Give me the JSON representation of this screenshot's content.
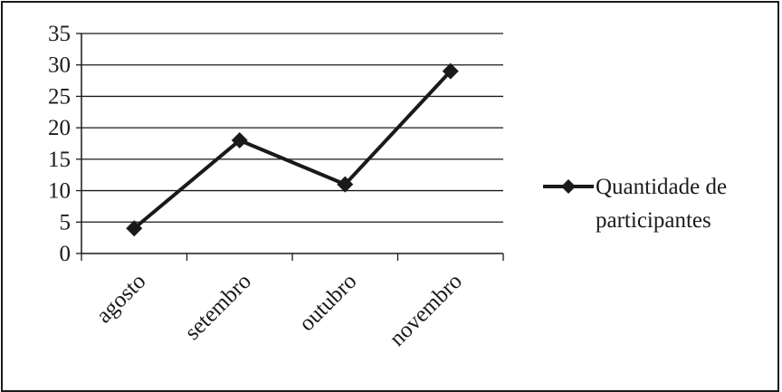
{
  "chart_data": {
    "type": "line",
    "categories": [
      "agosto",
      "setembro",
      "outubro",
      "novembro"
    ],
    "series": [
      {
        "name": "Quantidade de participantes",
        "values": [
          4,
          18,
          11,
          29
        ]
      }
    ],
    "legend": {
      "position": "right",
      "lines": [
        "Quantidade de",
        "participantes"
      ]
    },
    "yticks": [
      "0",
      "5",
      "10",
      "15",
      "20",
      "25",
      "30",
      "35"
    ],
    "ylim": [
      0,
      35
    ],
    "grid": true,
    "colors": {
      "line": "#1a1a1a",
      "grid": "#1a1a1a"
    }
  }
}
